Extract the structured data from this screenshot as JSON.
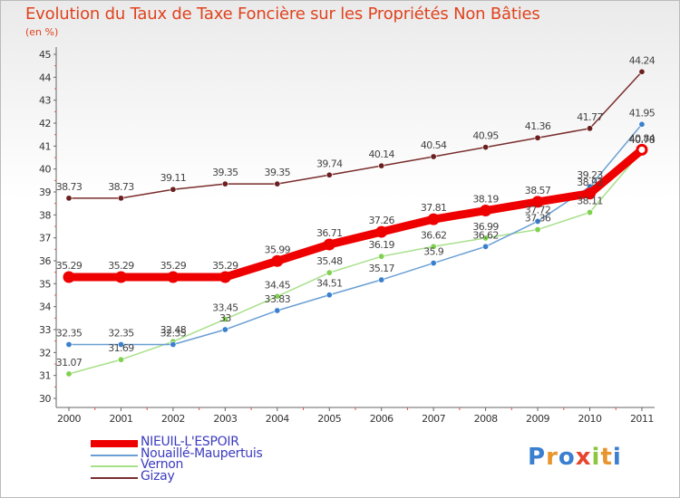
{
  "title": "Evolution du Taux de Taxe Foncière sur les Propriétés Non Bâties",
  "subtitle": "(en %)",
  "logo": {
    "text": "Proxiti",
    "letter_colors": [
      "#3a7fd0",
      "#e8952e",
      "#3a7fd0",
      "#e8452e",
      "#8cc63f",
      "#e8952e",
      "#3a7fd0"
    ]
  },
  "chart_data": {
    "type": "line",
    "title": "Evolution du Taux de Taxe Foncière sur les Propriétés Non Bâties",
    "ylabel": "(en %)",
    "xlabel": "",
    "x": [
      "2000",
      "2001",
      "2002",
      "2003",
      "2004",
      "2005",
      "2006",
      "2007",
      "2008",
      "2009",
      "2010",
      "2011"
    ],
    "ylim": [
      30,
      45
    ],
    "yticks": [
      "30",
      "31",
      "32",
      "33",
      "34",
      "35",
      "36",
      "37",
      "38",
      "39",
      "40",
      "41",
      "42",
      "43",
      "44",
      "45"
    ],
    "grid": false,
    "legend_position": "bottom-left",
    "series": [
      {
        "name": "NIEUIL-L'ESPOIR",
        "color": "#ee0000",
        "highlight": true,
        "values": [
          35.29,
          35.29,
          35.29,
          35.29,
          35.99,
          36.71,
          37.26,
          37.81,
          38.19,
          38.57,
          38.93,
          40.84
        ],
        "labels": [
          "35.29",
          "35.29",
          "35.29",
          "35.29",
          "35.99",
          "36.71",
          "37.26",
          "37.81",
          "38.19",
          "38.57",
          "38.93",
          "40.84"
        ]
      },
      {
        "name": "Nouaillé-Maupertuis",
        "color": "#6a9fd4",
        "marker": "#3a80cc",
        "values": [
          32.35,
          32.35,
          32.35,
          33.0,
          33.83,
          34.51,
          35.17,
          35.9,
          36.62,
          37.72,
          39.23,
          41.95
        ],
        "labels": [
          "32.35",
          "32.35",
          "32.35",
          "33",
          "33.83",
          "34.51",
          "35.17",
          "35.9",
          "36.62",
          "37.72",
          "39.23",
          "41.95"
        ]
      },
      {
        "name": "Vernon",
        "color": "#a8e08a",
        "marker": "#7fd14f",
        "values": [
          31.07,
          31.69,
          32.48,
          33.45,
          34.45,
          35.48,
          36.19,
          36.62,
          36.99,
          37.36,
          38.11,
          40.78
        ],
        "labels": [
          "31.07",
          "31.69",
          "32.48",
          "33.45",
          "34.45",
          "35.48",
          "36.19",
          "36.62",
          "36.99",
          "37.36",
          "38.11",
          "40.78"
        ]
      },
      {
        "name": "Gizay",
        "color": "#7a2d2d",
        "marker": "#6b1f1f",
        "values": [
          38.73,
          38.73,
          39.11,
          39.35,
          39.35,
          39.74,
          40.14,
          40.54,
          40.95,
          41.36,
          41.77,
          44.24
        ],
        "labels": [
          "38.73",
          "38.73",
          "39.11",
          "39.35",
          "39.35",
          "39.74",
          "40.14",
          "40.54",
          "40.95",
          "41.36",
          "41.77",
          "44.24"
        ]
      }
    ]
  }
}
